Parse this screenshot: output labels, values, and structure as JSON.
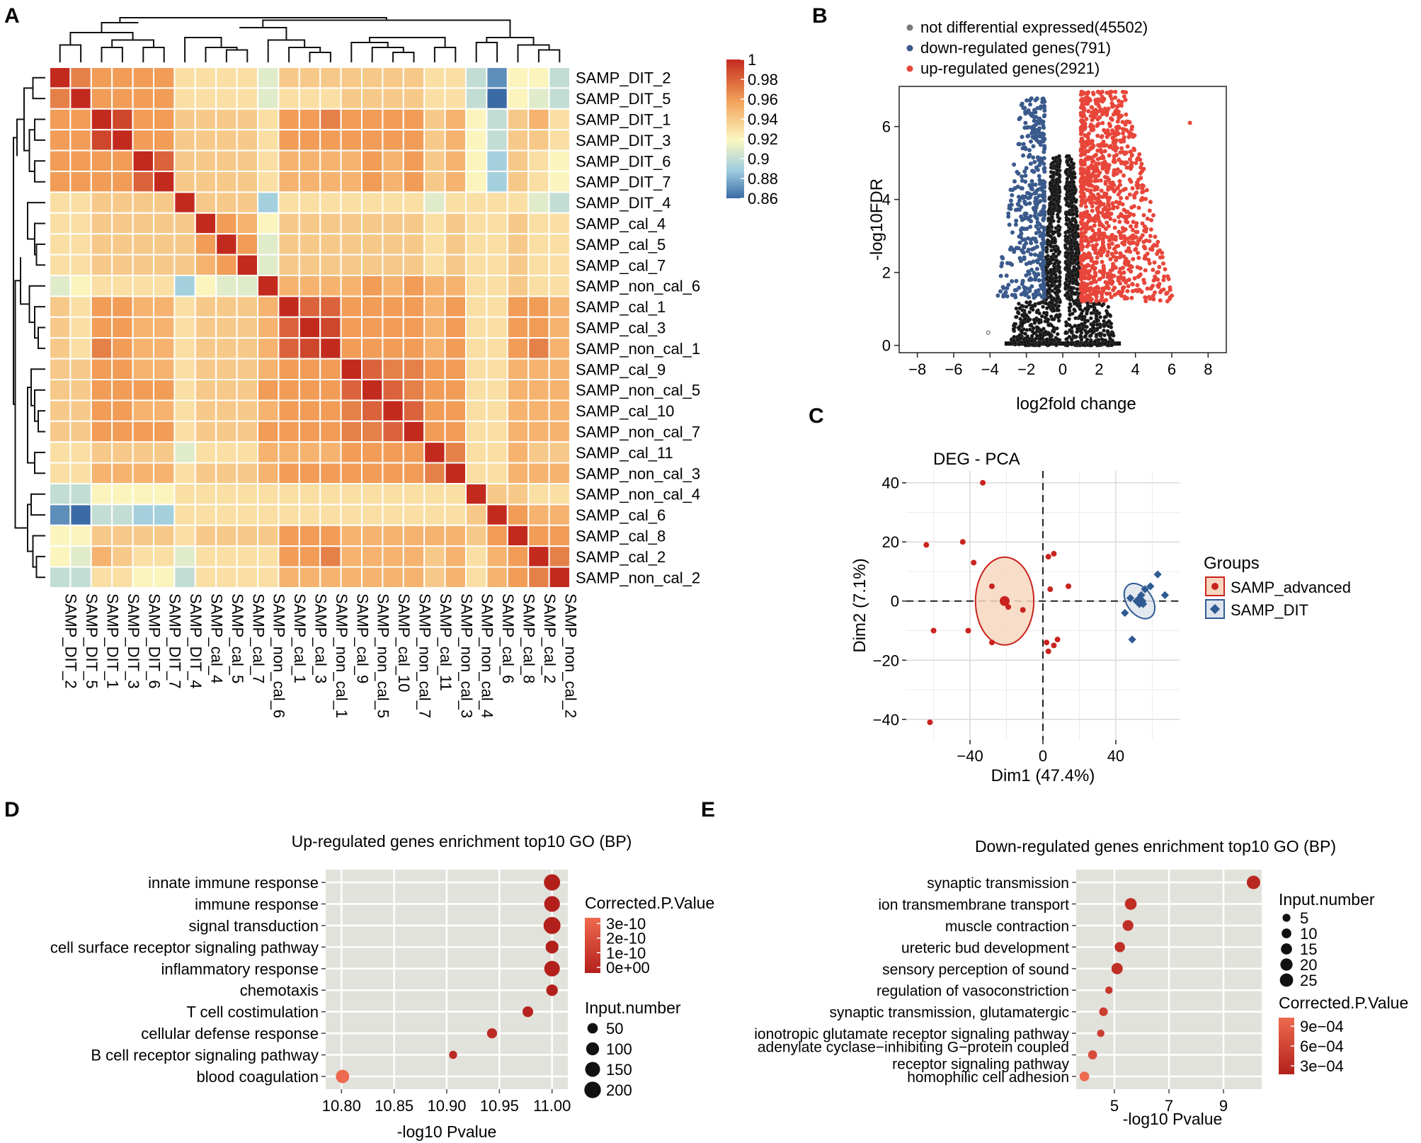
{
  "colors": {
    "scale_low": "#3a6ba5",
    "scale_mid": "#fbf7c0",
    "scale_high": "#c32a1e",
    "up_red": "#e8463a",
    "down_blue": "#3a5a8c",
    "adv_red": "#c8231e",
    "dit_blue": "#2f5b93",
    "panel_bg": "#e2e2dc"
  },
  "panels": {
    "A": "A",
    "B": "B",
    "C": "C",
    "D": "D",
    "E": "E"
  },
  "chart_data": [
    {
      "type": "heatmap",
      "panel": "A",
      "title": "",
      "samples": [
        "SAMP_DIT_2",
        "SAMP_DIT_5",
        "SAMP_DIT_1",
        "SAMP_DIT_3",
        "SAMP_DIT_6",
        "SAMP_DIT_7",
        "SAMP_DIT_4",
        "SAMP_cal_4",
        "SAMP_cal_5",
        "SAMP_cal_7",
        "SAMP_non_cal_6",
        "SAMP_cal_1",
        "SAMP_cal_3",
        "SAMP_non_cal_1",
        "SAMP_cal_9",
        "SAMP_non_cal_5",
        "SAMP_cal_10",
        "SAMP_non_cal_7",
        "SAMP_cal_11",
        "SAMP_non_cal_3",
        "SAMP_non_cal_4",
        "SAMP_cal_6",
        "SAMP_cal_8",
        "SAMP_cal_2",
        "SAMP_non_cal_2"
      ],
      "matrix": [
        [
          1.0,
          0.97,
          0.96,
          0.96,
          0.96,
          0.96,
          0.93,
          0.93,
          0.93,
          0.93,
          0.91,
          0.94,
          0.94,
          0.94,
          0.94,
          0.94,
          0.94,
          0.94,
          0.93,
          0.93,
          0.9,
          0.87,
          0.92,
          0.92,
          0.9
        ],
        [
          0.97,
          1.0,
          0.96,
          0.96,
          0.96,
          0.96,
          0.93,
          0.93,
          0.93,
          0.93,
          0.91,
          0.93,
          0.93,
          0.93,
          0.94,
          0.94,
          0.94,
          0.94,
          0.93,
          0.93,
          0.9,
          0.86,
          0.92,
          0.91,
          0.9
        ],
        [
          0.96,
          0.96,
          1.0,
          0.99,
          0.96,
          0.96,
          0.94,
          0.94,
          0.94,
          0.94,
          0.93,
          0.96,
          0.96,
          0.97,
          0.96,
          0.96,
          0.96,
          0.96,
          0.94,
          0.95,
          0.92,
          0.9,
          0.94,
          0.95,
          0.93
        ],
        [
          0.96,
          0.96,
          0.99,
          1.0,
          0.96,
          0.96,
          0.94,
          0.94,
          0.94,
          0.94,
          0.93,
          0.96,
          0.96,
          0.96,
          0.96,
          0.96,
          0.96,
          0.96,
          0.94,
          0.95,
          0.92,
          0.9,
          0.94,
          0.94,
          0.93
        ],
        [
          0.96,
          0.96,
          0.96,
          0.96,
          1.0,
          0.98,
          0.94,
          0.94,
          0.94,
          0.94,
          0.93,
          0.95,
          0.95,
          0.95,
          0.95,
          0.96,
          0.95,
          0.96,
          0.94,
          0.95,
          0.92,
          0.89,
          0.94,
          0.93,
          0.92
        ],
        [
          0.96,
          0.96,
          0.96,
          0.96,
          0.98,
          1.0,
          0.94,
          0.94,
          0.94,
          0.94,
          0.93,
          0.95,
          0.95,
          0.95,
          0.95,
          0.96,
          0.95,
          0.96,
          0.94,
          0.95,
          0.92,
          0.89,
          0.94,
          0.93,
          0.92
        ],
        [
          0.93,
          0.93,
          0.94,
          0.94,
          0.94,
          0.94,
          1.0,
          0.94,
          0.94,
          0.94,
          0.89,
          0.93,
          0.93,
          0.93,
          0.93,
          0.93,
          0.93,
          0.93,
          0.91,
          0.93,
          0.93,
          0.93,
          0.93,
          0.91,
          0.9
        ],
        [
          0.93,
          0.93,
          0.94,
          0.94,
          0.94,
          0.94,
          0.94,
          1.0,
          0.96,
          0.95,
          0.92,
          0.94,
          0.94,
          0.94,
          0.94,
          0.94,
          0.94,
          0.94,
          0.93,
          0.94,
          0.93,
          0.93,
          0.94,
          0.93,
          0.93
        ],
        [
          0.93,
          0.93,
          0.94,
          0.94,
          0.94,
          0.94,
          0.94,
          0.96,
          1.0,
          0.96,
          0.91,
          0.94,
          0.94,
          0.94,
          0.94,
          0.94,
          0.94,
          0.94,
          0.93,
          0.94,
          0.93,
          0.93,
          0.94,
          0.93,
          0.93
        ],
        [
          0.93,
          0.93,
          0.94,
          0.94,
          0.94,
          0.94,
          0.94,
          0.95,
          0.96,
          1.0,
          0.91,
          0.94,
          0.94,
          0.94,
          0.94,
          0.94,
          0.94,
          0.94,
          0.93,
          0.94,
          0.93,
          0.93,
          0.94,
          0.93,
          0.93
        ],
        [
          0.91,
          0.92,
          0.93,
          0.93,
          0.93,
          0.93,
          0.89,
          0.92,
          0.91,
          0.91,
          1.0,
          0.95,
          0.95,
          0.95,
          0.95,
          0.96,
          0.95,
          0.96,
          0.95,
          0.95,
          0.93,
          0.93,
          0.94,
          0.93,
          0.93
        ],
        [
          0.94,
          0.93,
          0.96,
          0.96,
          0.95,
          0.95,
          0.93,
          0.94,
          0.94,
          0.94,
          0.95,
          1.0,
          0.98,
          0.98,
          0.96,
          0.96,
          0.96,
          0.96,
          0.95,
          0.96,
          0.93,
          0.93,
          0.96,
          0.96,
          0.95
        ],
        [
          0.94,
          0.93,
          0.96,
          0.96,
          0.95,
          0.95,
          0.93,
          0.94,
          0.94,
          0.94,
          0.95,
          0.98,
          1.0,
          0.99,
          0.96,
          0.96,
          0.96,
          0.96,
          0.95,
          0.96,
          0.93,
          0.93,
          0.96,
          0.96,
          0.95
        ],
        [
          0.94,
          0.93,
          0.97,
          0.96,
          0.95,
          0.95,
          0.93,
          0.94,
          0.94,
          0.94,
          0.95,
          0.98,
          0.99,
          1.0,
          0.96,
          0.96,
          0.96,
          0.96,
          0.95,
          0.96,
          0.93,
          0.93,
          0.96,
          0.97,
          0.95
        ],
        [
          0.94,
          0.94,
          0.96,
          0.96,
          0.95,
          0.95,
          0.93,
          0.94,
          0.94,
          0.94,
          0.95,
          0.96,
          0.96,
          0.96,
          1.0,
          0.98,
          0.97,
          0.97,
          0.96,
          0.96,
          0.93,
          0.93,
          0.95,
          0.95,
          0.95
        ],
        [
          0.94,
          0.94,
          0.96,
          0.96,
          0.96,
          0.96,
          0.93,
          0.94,
          0.94,
          0.94,
          0.96,
          0.96,
          0.96,
          0.96,
          0.98,
          1.0,
          0.98,
          0.97,
          0.96,
          0.96,
          0.93,
          0.93,
          0.95,
          0.95,
          0.95
        ],
        [
          0.94,
          0.94,
          0.96,
          0.96,
          0.95,
          0.95,
          0.93,
          0.94,
          0.94,
          0.94,
          0.95,
          0.96,
          0.96,
          0.96,
          0.97,
          0.98,
          1.0,
          0.98,
          0.96,
          0.96,
          0.93,
          0.93,
          0.95,
          0.95,
          0.95
        ],
        [
          0.94,
          0.94,
          0.96,
          0.96,
          0.96,
          0.96,
          0.93,
          0.94,
          0.94,
          0.94,
          0.96,
          0.96,
          0.96,
          0.96,
          0.97,
          0.97,
          0.98,
          1.0,
          0.96,
          0.96,
          0.93,
          0.93,
          0.95,
          0.95,
          0.95
        ],
        [
          0.93,
          0.93,
          0.94,
          0.94,
          0.94,
          0.94,
          0.91,
          0.93,
          0.93,
          0.93,
          0.95,
          0.95,
          0.95,
          0.95,
          0.96,
          0.96,
          0.96,
          0.96,
          1.0,
          0.97,
          0.93,
          0.93,
          0.95,
          0.94,
          0.94
        ],
        [
          0.93,
          0.93,
          0.95,
          0.95,
          0.95,
          0.95,
          0.93,
          0.94,
          0.94,
          0.94,
          0.95,
          0.96,
          0.96,
          0.96,
          0.96,
          0.96,
          0.96,
          0.96,
          0.97,
          1.0,
          0.93,
          0.93,
          0.95,
          0.95,
          0.95
        ],
        [
          0.9,
          0.9,
          0.92,
          0.92,
          0.92,
          0.92,
          0.93,
          0.93,
          0.93,
          0.93,
          0.93,
          0.93,
          0.93,
          0.93,
          0.93,
          0.93,
          0.93,
          0.93,
          0.93,
          0.93,
          1.0,
          0.94,
          0.94,
          0.93,
          0.93
        ],
        [
          0.87,
          0.86,
          0.9,
          0.9,
          0.89,
          0.89,
          0.93,
          0.93,
          0.93,
          0.93,
          0.93,
          0.93,
          0.93,
          0.93,
          0.93,
          0.93,
          0.93,
          0.93,
          0.93,
          0.93,
          0.94,
          1.0,
          0.96,
          0.95,
          0.95
        ],
        [
          0.92,
          0.92,
          0.94,
          0.94,
          0.94,
          0.94,
          0.93,
          0.94,
          0.94,
          0.94,
          0.94,
          0.96,
          0.96,
          0.96,
          0.95,
          0.95,
          0.95,
          0.95,
          0.95,
          0.95,
          0.94,
          0.96,
          1.0,
          0.96,
          0.96
        ],
        [
          0.92,
          0.91,
          0.95,
          0.94,
          0.93,
          0.93,
          0.91,
          0.93,
          0.93,
          0.93,
          0.93,
          0.96,
          0.96,
          0.97,
          0.95,
          0.95,
          0.95,
          0.95,
          0.94,
          0.95,
          0.93,
          0.95,
          0.96,
          1.0,
          0.97
        ],
        [
          0.9,
          0.9,
          0.93,
          0.93,
          0.92,
          0.92,
          0.9,
          0.93,
          0.93,
          0.93,
          0.93,
          0.95,
          0.95,
          0.95,
          0.95,
          0.95,
          0.95,
          0.95,
          0.94,
          0.95,
          0.93,
          0.95,
          0.96,
          0.97,
          1.0
        ]
      ],
      "color_scale": {
        "min": 0.86,
        "max": 1.0,
        "ticks": [
          "1",
          "0.98",
          "0.96",
          "0.94",
          "0.92",
          "0.9",
          "0.88",
          "0.86"
        ]
      }
    },
    {
      "type": "scatter",
      "panel": "B",
      "title": "",
      "xlabel": "log2fold change",
      "ylabel": "-log10FDR",
      "xlim": [
        -9,
        9
      ],
      "ylim": [
        -0.2,
        7.1
      ],
      "xticks": [
        -8,
        -6,
        -4,
        -2,
        0,
        2,
        4,
        6,
        8
      ],
      "yticks": [
        0,
        2,
        4,
        6
      ],
      "legend": [
        {
          "label": "not differential expressed(45502)",
          "color": "#7a7a7a"
        },
        {
          "label": "down-regulated genes(791)",
          "color": "#3a5a8c"
        },
        {
          "label": "up-regulated genes(2921)",
          "color": "#e8463a"
        }
      ],
      "counts": {
        "not_de": 45502,
        "down": 791,
        "up": 2921
      }
    },
    {
      "type": "scatter",
      "panel": "C",
      "title": "DEG - PCA",
      "xlabel": "Dim1 (47.4%)",
      "ylabel": "Dim2 (7.1%)",
      "xlim": [
        -75,
        75
      ],
      "ylim": [
        -47,
        44
      ],
      "xticks": [
        -40,
        0,
        40
      ],
      "yticks": [
        40,
        20,
        0,
        -20,
        -40
      ],
      "legend_title": "Groups",
      "series": [
        {
          "name": "SAMP_advanced",
          "color": "#c8231e",
          "points": [
            [
              -64,
              19
            ],
            [
              -33,
              40
            ],
            [
              -44,
              20
            ],
            [
              -38,
              13
            ],
            [
              -60,
              -10
            ],
            [
              -41,
              -10
            ],
            [
              -28,
              5
            ],
            [
              -19,
              -2
            ],
            [
              -11,
              -3
            ],
            [
              -62,
              -41
            ],
            [
              -28,
              -14
            ],
            [
              3,
              15
            ],
            [
              6,
              16
            ],
            [
              14,
              5
            ],
            [
              4,
              4
            ],
            [
              2,
              -14
            ],
            [
              3,
              -17
            ],
            [
              6,
              -15
            ],
            [
              8,
              -13
            ]
          ],
          "centroid": [
            -21,
            0
          ],
          "ellipse": {
            "rx": 16,
            "ry": 11
          }
        },
        {
          "name": "SAMP_DIT",
          "color": "#2f5b93",
          "points": [
            [
              45,
              -4
            ],
            [
              48,
              1
            ],
            [
              52,
              0
            ],
            [
              54,
              2
            ],
            [
              56,
              4
            ],
            [
              55,
              -1
            ],
            [
              59,
              5
            ],
            [
              63,
              9
            ],
            [
              67,
              2
            ],
            [
              49,
              -13
            ]
          ],
          "centroid": [
            53,
            0
          ],
          "ellipse": {
            "rx": 7,
            "ry": 6
          }
        }
      ]
    },
    {
      "type": "scatter",
      "panel": "D",
      "title": "Up-regulated genes enrichment top10 GO (BP)",
      "xlabel": "-log10 Pvalue",
      "ylabel": "",
      "xlim": [
        10.785,
        11.015
      ],
      "xticks": [
        "10.80",
        "10.85",
        "10.90",
        "10.95",
        "11.00"
      ],
      "categories": [
        "innate immune response",
        "immune response",
        "signal transduction",
        "cell surface receptor signaling pathway",
        "inflammatory response",
        "chemotaxis",
        "T cell costimulation",
        "cellular defense response",
        "B cell receptor signaling pathway",
        "blood coagulation"
      ],
      "x": [
        11.0,
        11.0,
        11.0,
        11.0,
        11.0,
        11.0,
        10.977,
        10.943,
        10.906,
        10.801
      ],
      "size": [
        190,
        175,
        215,
        100,
        170,
        70,
        55,
        45,
        20,
        110
      ],
      "color_value": [
        0,
        0,
        0,
        0,
        0,
        0,
        2e-11,
        5e-11,
        5e-11,
        3.3e-10
      ],
      "size_legend_title": "Input.number",
      "size_legend": [
        50,
        100,
        150,
        200
      ],
      "color_legend_title": "Corrected.P.Value",
      "color_legend": [
        "3e-10",
        "2e-10",
        "1e-10",
        "0e+00"
      ]
    },
    {
      "type": "scatter",
      "panel": "E",
      "title": "Down-regulated genes enrichment top10 GO (BP)",
      "xlabel": "-log10 Pvalue",
      "ylabel": "",
      "xlim": [
        3.6,
        10.4
      ],
      "xticks": [
        "5",
        "7",
        "9"
      ],
      "categories": [
        "synaptic transmission",
        "ion transmembrane transport",
        "muscle contraction",
        "ureteric bud development",
        "sensory perception of sound",
        "regulation of vasoconstriction",
        "synaptic transmission, glutamatergic",
        "ionotropic glutamate receptor signaling pathway",
        "adenylate cyclase−inhibiting G−protein coupled|receptor signaling pathway",
        "homophilic cell adhesion"
      ],
      "x": [
        10.1,
        5.6,
        5.5,
        5.2,
        5.1,
        4.8,
        4.6,
        4.5,
        4.2,
        3.9
      ],
      "size": [
        26,
        18,
        14,
        12,
        16,
        4,
        7,
        4,
        8,
        10
      ],
      "color_value": [
        0.0001,
        0.0002,
        0.0002,
        0.0002,
        0.0002,
        0.0003,
        0.0004,
        0.0004,
        0.0006,
        0.001
      ],
      "size_legend_title": "Input.number",
      "size_legend": [
        5,
        10,
        15,
        20,
        25
      ],
      "color_legend_title": "Corrected.P.Value",
      "color_legend": [
        "9e−04",
        "6e−04",
        "3e−04"
      ]
    }
  ]
}
